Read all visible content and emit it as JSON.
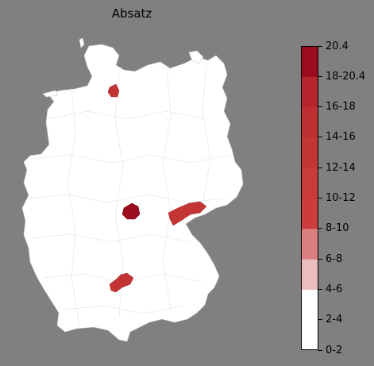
{
  "map": {
    "title": "Absatz",
    "colorbar": {
      "ticks": [
        "0-2",
        "2-4",
        "4-6",
        "6-8",
        "8-10",
        "10-12",
        "12-14",
        "14-16",
        "16-18",
        "18-20.4",
        "20.4"
      ],
      "bands": [
        {
          "label": "0-2",
          "color": "#ffffff"
        },
        {
          "label": "2-4",
          "color": "#ffffff"
        },
        {
          "label": "4-6",
          "color": "#ecbdbd"
        },
        {
          "label": "6-8",
          "color": "#db8080"
        },
        {
          "label": "8-10",
          "color": "#cc3c3c"
        },
        {
          "label": "10-12",
          "color": "#c93a3a"
        },
        {
          "label": "12-14",
          "color": "#c33535"
        },
        {
          "label": "14-16",
          "color": "#bd2f31"
        },
        {
          "label": "16-18",
          "color": "#b5252b"
        },
        {
          "label": "18-20.4",
          "color": "#a51621"
        },
        {
          "label": "20.4",
          "color": "#9a0b1d"
        }
      ]
    },
    "highlighted_regions": [
      {
        "name": "Hamburg region",
        "color": "#c33535"
      },
      {
        "name": "Thuringia central region",
        "color": "#9a0b1d"
      },
      {
        "name": "Saxony region",
        "color": "#c33535"
      },
      {
        "name": "Baden-Württemberg region",
        "color": "#c33535"
      }
    ]
  }
}
